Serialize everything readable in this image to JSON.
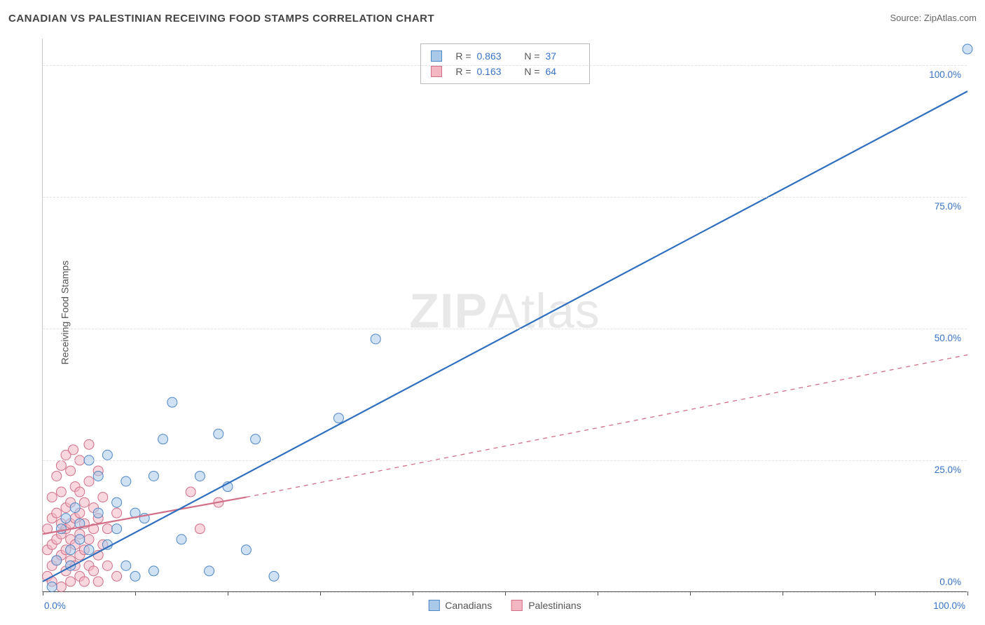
{
  "header": {
    "title": "CANADIAN VS PALESTINIAN RECEIVING FOOD STAMPS CORRELATION CHART",
    "source_prefix": "Source: ",
    "source": "ZipAtlas.com"
  },
  "yaxis": {
    "title": "Receiving Food Stamps",
    "ticks": [
      0,
      25,
      50,
      75,
      100
    ],
    "tick_labels": [
      "0.0%",
      "25.0%",
      "50.0%",
      "75.0%",
      "100.0%"
    ]
  },
  "xaxis": {
    "ticks": [
      0,
      10,
      20,
      30,
      40,
      50,
      60,
      70,
      80,
      90,
      100
    ],
    "end_labels": {
      "min": "0.0%",
      "max": "100.0%"
    }
  },
  "chart": {
    "type": "scatter",
    "background_color": "#ffffff",
    "grid_color": "#e2e2e2",
    "xlim": [
      0,
      100
    ],
    "ylim": [
      0,
      105
    ],
    "marker_radius": 7,
    "marker_opacity": 0.55,
    "line_width": 2.2
  },
  "series": [
    {
      "key": "canadians",
      "label": "Canadians",
      "color_fill": "#a9c8ea",
      "color_stroke": "#4f86c6",
      "line_color": "#2f6fbf",
      "line_dash": "none",
      "R": "0.863",
      "N": "37",
      "trend": {
        "x1": 0,
        "y1": 2,
        "x2": 100,
        "y2": 95
      },
      "points": [
        [
          1,
          1
        ],
        [
          1.5,
          6
        ],
        [
          2,
          12
        ],
        [
          2.5,
          14
        ],
        [
          3,
          8
        ],
        [
          3.5,
          16
        ],
        [
          3,
          5
        ],
        [
          4,
          10
        ],
        [
          4,
          13
        ],
        [
          5,
          8
        ],
        [
          5,
          25
        ],
        [
          6,
          22
        ],
        [
          6,
          15
        ],
        [
          7,
          9
        ],
        [
          7,
          26
        ],
        [
          8,
          17
        ],
        [
          8,
          12
        ],
        [
          9,
          21
        ],
        [
          9,
          5
        ],
        [
          10,
          15
        ],
        [
          10,
          3
        ],
        [
          11,
          14
        ],
        [
          12,
          22
        ],
        [
          12,
          4
        ],
        [
          13,
          29
        ],
        [
          14,
          36
        ],
        [
          15,
          10
        ],
        [
          17,
          22
        ],
        [
          18,
          4
        ],
        [
          19,
          30
        ],
        [
          20,
          20
        ],
        [
          22,
          8
        ],
        [
          23,
          29
        ],
        [
          25,
          3
        ],
        [
          32,
          33
        ],
        [
          36,
          48
        ],
        [
          100,
          103
        ]
      ]
    },
    {
      "key": "palestinians",
      "label": "Palestinians",
      "color_fill": "#f3b7c2",
      "color_stroke": "#d26f86",
      "line_color": "#d26f86",
      "line_dash": "dashed_after",
      "R": "0.163",
      "N": "64",
      "trend_solid": {
        "x1": 0,
        "y1": 11,
        "x2": 22,
        "y2": 18
      },
      "trend_dashed": {
        "x1": 22,
        "y1": 18,
        "x2": 100,
        "y2": 45
      },
      "points": [
        [
          0.5,
          3
        ],
        [
          0.5,
          8
        ],
        [
          0.5,
          12
        ],
        [
          1,
          2
        ],
        [
          1,
          5
        ],
        [
          1,
          9
        ],
        [
          1,
          14
        ],
        [
          1,
          18
        ],
        [
          1.5,
          6
        ],
        [
          1.5,
          10
        ],
        [
          1.5,
          15
        ],
        [
          1.5,
          22
        ],
        [
          2,
          1
        ],
        [
          2,
          7
        ],
        [
          2,
          11
        ],
        [
          2,
          13
        ],
        [
          2,
          19
        ],
        [
          2,
          24
        ],
        [
          2.5,
          4
        ],
        [
          2.5,
          8
        ],
        [
          2.5,
          12
        ],
        [
          2.5,
          16
        ],
        [
          2.5,
          26
        ],
        [
          3,
          2
        ],
        [
          3,
          6
        ],
        [
          3,
          10
        ],
        [
          3,
          13
        ],
        [
          3,
          17
        ],
        [
          3,
          23
        ],
        [
          3.3,
          27
        ],
        [
          3.5,
          5
        ],
        [
          3.5,
          9
        ],
        [
          3.5,
          14
        ],
        [
          3.5,
          20
        ],
        [
          4,
          3
        ],
        [
          4,
          7
        ],
        [
          4,
          11
        ],
        [
          4,
          15
        ],
        [
          4,
          19
        ],
        [
          4,
          25
        ],
        [
          4.5,
          2
        ],
        [
          4.5,
          8
        ],
        [
          4.5,
          13
        ],
        [
          4.5,
          17
        ],
        [
          5,
          5
        ],
        [
          5,
          10
        ],
        [
          5,
          21
        ],
        [
          5,
          28
        ],
        [
          5.5,
          4
        ],
        [
          5.5,
          12
        ],
        [
          5.5,
          16
        ],
        [
          6,
          2
        ],
        [
          6,
          7
        ],
        [
          6,
          14
        ],
        [
          6,
          23
        ],
        [
          6.5,
          9
        ],
        [
          6.5,
          18
        ],
        [
          7,
          5
        ],
        [
          7,
          12
        ],
        [
          8,
          3
        ],
        [
          8,
          15
        ],
        [
          16,
          19
        ],
        [
          17,
          12
        ],
        [
          19,
          17
        ]
      ]
    }
  ],
  "watermark": {
    "bold": "ZIP",
    "rest": "Atlas"
  },
  "legend_bottom": [
    {
      "label": "Canadians",
      "fill": "#a9c8ea",
      "stroke": "#4f86c6"
    },
    {
      "label": "Palestinians",
      "fill": "#f3b7c2",
      "stroke": "#d26f86"
    }
  ]
}
